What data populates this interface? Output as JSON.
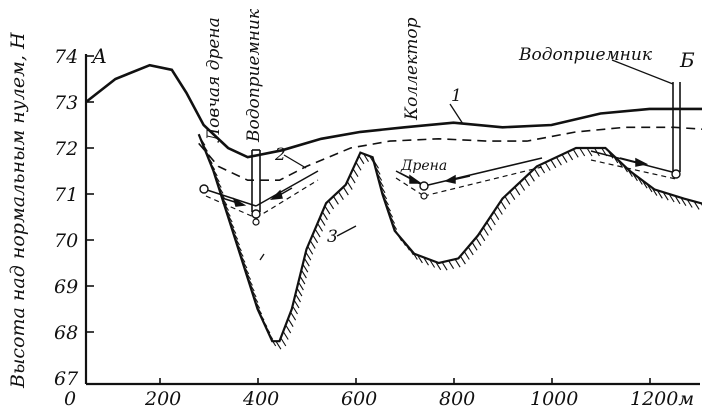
{
  "y_axis": {
    "label": "Высота над нормальным нулем, Н",
    "ticks": [
      "74",
      "73",
      "72",
      "71",
      "70",
      "69",
      "68",
      "67"
    ]
  },
  "x_axis": {
    "ticks": [
      "0",
      "200",
      "400",
      "600",
      "800",
      "1000",
      "1200м"
    ]
  },
  "corners": {
    "left": "А",
    "right": "Б"
  },
  "labels": {
    "catch_drain": "Ловчая дрена",
    "receiver_left": "Водоприемник",
    "collector": "Коллектор",
    "receiver_right": "Водоприемник",
    "drain": "Дрена",
    "curve1": "1",
    "curve2": "2",
    "curve3": "3"
  },
  "profiles": {
    "ground_surface_1": [
      [
        0,
        73.0
      ],
      [
        60,
        73.5
      ],
      [
        130,
        73.8
      ],
      [
        175,
        73.7
      ],
      [
        205,
        73.2
      ],
      [
        240,
        72.5
      ],
      [
        290,
        72.0
      ],
      [
        330,
        71.8
      ],
      [
        400,
        71.95
      ],
      [
        480,
        72.2
      ],
      [
        560,
        72.35
      ],
      [
        650,
        72.45
      ],
      [
        750,
        72.55
      ],
      [
        850,
        72.45
      ],
      [
        950,
        72.5
      ],
      [
        1050,
        72.75
      ],
      [
        1150,
        72.85
      ],
      [
        1250,
        72.85
      ],
      [
        1340,
        72.85
      ]
    ],
    "water_table_2": [
      [
        230,
        72.1
      ],
      [
        270,
        71.6
      ],
      [
        330,
        71.3
      ],
      [
        395,
        71.3
      ],
      [
        450,
        71.6
      ],
      [
        540,
        72.0
      ],
      [
        620,
        72.15
      ],
      [
        720,
        72.2
      ],
      [
        820,
        72.15
      ],
      [
        900,
        72.15
      ],
      [
        1000,
        72.35
      ],
      [
        1100,
        72.45
      ],
      [
        1200,
        72.45
      ],
      [
        1340,
        72.35
      ]
    ],
    "impervious_layer_3": [
      [
        230,
        72.3
      ],
      [
        260,
        71.5
      ],
      [
        290,
        70.5
      ],
      [
        320,
        69.5
      ],
      [
        350,
        68.5
      ],
      [
        380,
        67.8
      ],
      [
        395,
        67.8
      ],
      [
        420,
        68.5
      ],
      [
        450,
        69.8
      ],
      [
        490,
        70.8
      ],
      [
        530,
        71.2
      ],
      [
        560,
        71.9
      ],
      [
        585,
        71.8
      ],
      [
        605,
        71.0
      ],
      [
        630,
        70.2
      ],
      [
        670,
        69.7
      ],
      [
        720,
        69.5
      ],
      [
        760,
        69.6
      ],
      [
        800,
        70.1
      ],
      [
        850,
        70.9
      ],
      [
        920,
        71.6
      ],
      [
        1000,
        72.0
      ],
      [
        1060,
        72.0
      ],
      [
        1110,
        71.5
      ],
      [
        1160,
        71.1
      ],
      [
        1220,
        70.9
      ],
      [
        1290,
        70.7
      ],
      [
        1340,
        70.4
      ]
    ]
  }
}
